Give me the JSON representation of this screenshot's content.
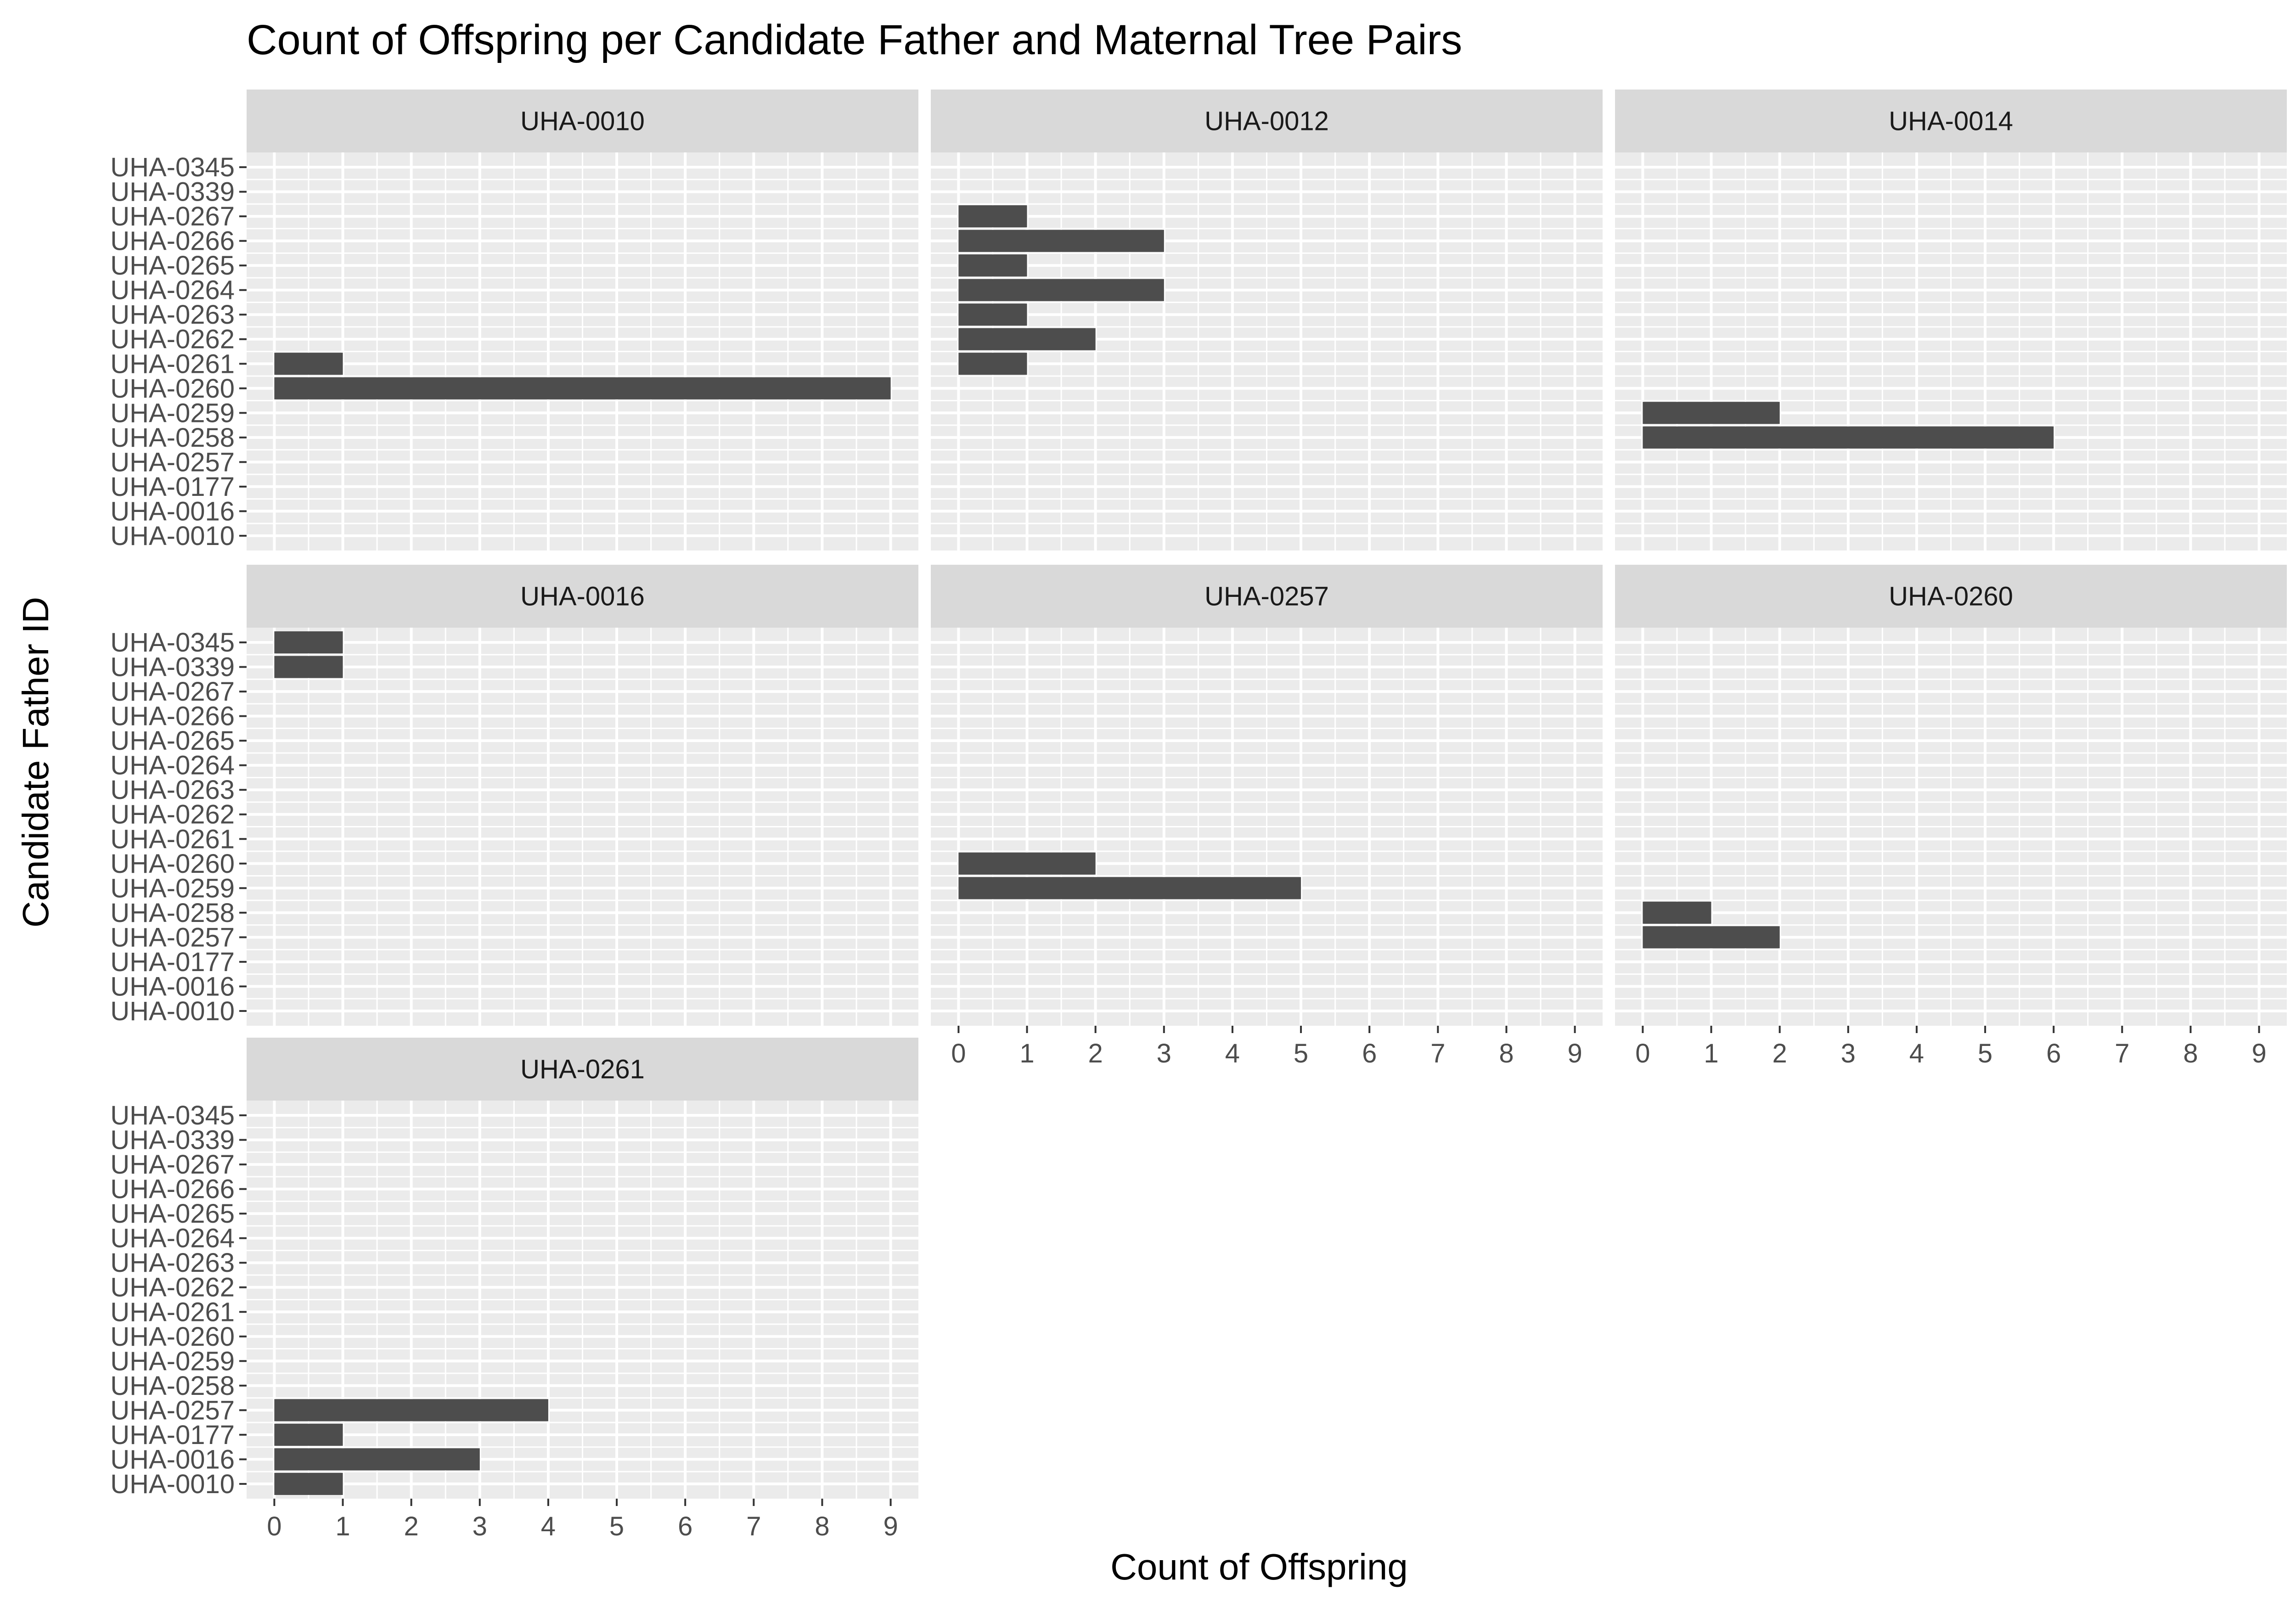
{
  "chart_data": {
    "type": "bar",
    "orientation": "horizontal",
    "title": "Count of Offspring per Candidate Father and Maternal Tree Pairs",
    "xlabel": "Count of Offspring",
    "ylabel": "Candidate Father ID",
    "xlim": [
      0,
      9
    ],
    "x_ticks": [
      "0",
      "1",
      "2",
      "3",
      "4",
      "5",
      "6",
      "7",
      "8",
      "9"
    ],
    "categories": [
      "UHA-0010",
      "UHA-0016",
      "UHA-0177",
      "UHA-0257",
      "UHA-0258",
      "UHA-0259",
      "UHA-0260",
      "UHA-0261",
      "UHA-0262",
      "UHA-0263",
      "UHA-0264",
      "UHA-0265",
      "UHA-0266",
      "UHA-0267",
      "UHA-0339",
      "UHA-0345"
    ],
    "grid": true,
    "bar_color": "#4d4d4d",
    "panel_background": "#ebebeb",
    "strip_background": "#d9d9d9",
    "facets": [
      {
        "name": "UHA-0010",
        "values": {
          "UHA-0260": 9,
          "UHA-0261": 1
        }
      },
      {
        "name": "UHA-0012",
        "values": {
          "UHA-0261": 1,
          "UHA-0262": 2,
          "UHA-0263": 1,
          "UHA-0264": 3,
          "UHA-0265": 1,
          "UHA-0266": 3,
          "UHA-0267": 1
        }
      },
      {
        "name": "UHA-0014",
        "values": {
          "UHA-0258": 6,
          "UHA-0259": 2
        }
      },
      {
        "name": "UHA-0016",
        "values": {
          "UHA-0339": 1,
          "UHA-0345": 1
        }
      },
      {
        "name": "UHA-0257",
        "values": {
          "UHA-0259": 5,
          "UHA-0260": 2
        }
      },
      {
        "name": "UHA-0260",
        "values": {
          "UHA-0257": 2,
          "UHA-0258": 1
        }
      },
      {
        "name": "UHA-0261",
        "values": {
          "UHA-0010": 1,
          "UHA-0016": 3,
          "UHA-0177": 1,
          "UHA-0257": 4
        }
      }
    ]
  }
}
